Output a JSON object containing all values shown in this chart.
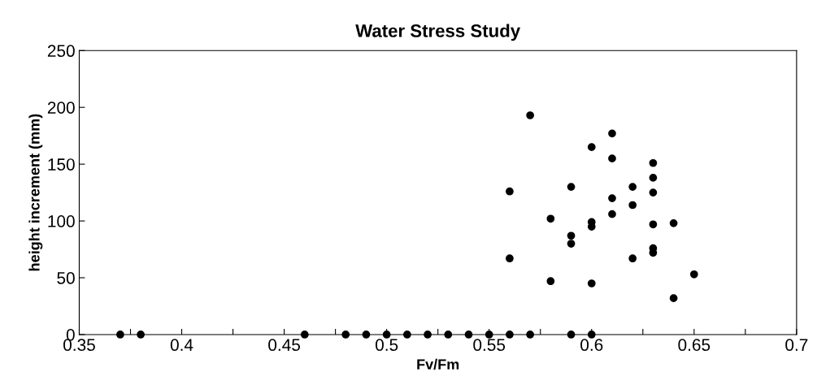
{
  "chart_data": {
    "type": "scatter",
    "title": "Water Stress Study",
    "xlabel": "Fv/Fm",
    "ylabel": "height increment (mm)",
    "x": [
      0.56,
      0.56,
      0.57,
      0.58,
      0.58,
      0.59,
      0.59,
      0.59,
      0.6,
      0.6,
      0.6,
      0.6,
      0.61,
      0.61,
      0.61,
      0.61,
      0.62,
      0.62,
      0.62,
      0.63,
      0.63,
      0.63,
      0.63,
      0.63,
      0.63,
      0.64,
      0.64,
      0.65,
      0.37,
      0.38,
      0.46,
      0.48,
      0.49,
      0.5,
      0.51,
      0.52,
      0.53,
      0.54,
      0.55,
      0.56,
      0.57,
      0.59,
      0.6
    ],
    "series": [
      {
        "color": "#000000",
        "values": [
          126,
          67,
          193,
          102,
          47,
          130,
          87,
          80,
          165,
          99,
          95,
          45,
          177,
          155,
          120,
          106,
          130,
          114,
          67,
          151,
          138,
          125,
          97,
          76,
          72,
          98,
          32,
          53,
          0,
          0,
          0,
          0,
          0,
          0,
          0,
          0,
          0,
          0,
          0,
          0,
          0,
          0,
          0
        ]
      }
    ],
    "marker": "circle",
    "grid": false,
    "legend": false,
    "xlim": [
      0.35,
      0.7
    ],
    "ylim": [
      0,
      250
    ],
    "xticks": [
      {
        "value": 0.35,
        "label": "0.35"
      },
      {
        "value": 0.375,
        "label": null
      },
      {
        "value": 0.4,
        "label": "0.4"
      },
      {
        "value": 0.425,
        "label": null
      },
      {
        "value": 0.45,
        "label": "0.45"
      },
      {
        "value": 0.475,
        "label": null
      },
      {
        "value": 0.5,
        "label": "0.5"
      },
      {
        "value": 0.525,
        "label": null
      },
      {
        "value": 0.55,
        "label": "0.55"
      },
      {
        "value": 0.575,
        "label": null
      },
      {
        "value": 0.6,
        "label": "0.6"
      },
      {
        "value": 0.625,
        "label": null
      },
      {
        "value": 0.65,
        "label": "0.65"
      },
      {
        "value": 0.675,
        "label": null
      },
      {
        "value": 0.7,
        "label": "0.7"
      }
    ],
    "yticks": [
      0,
      50,
      100,
      150,
      200,
      250
    ]
  }
}
